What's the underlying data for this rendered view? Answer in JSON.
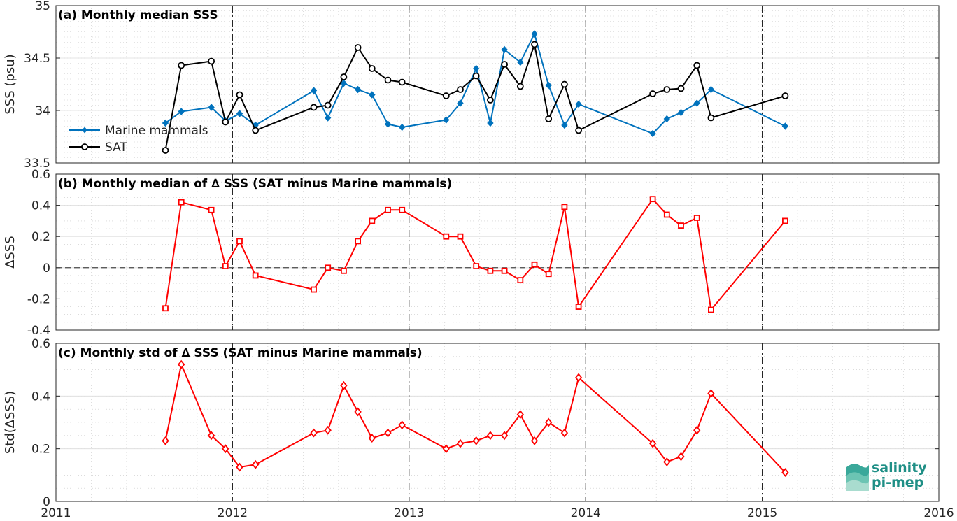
{
  "logo": {
    "line1": "salinity",
    "line2": "pi-mep"
  },
  "chart_data": [
    {
      "type": "line",
      "title": "(a) Monthly median SSS",
      "ylabel": "SSS (psu)",
      "xlabel": "",
      "ylim": [
        33.5,
        35
      ],
      "xlim": [
        2011,
        2016
      ],
      "yticks": [
        "33.5",
        "34",
        "34.5",
        "35"
      ],
      "xticks": [
        "2011",
        "2012",
        "2013",
        "2014",
        "2015",
        "2016"
      ],
      "grid": true,
      "legend": "left",
      "series": [
        {
          "name": "Marine mammals",
          "color": "#0072bd",
          "marker": "diamond-filled",
          "x": [
            2011.62,
            2011.71,
            2011.88,
            2011.96,
            2012.04,
            2012.13,
            2012.46,
            2012.54,
            2012.63,
            2012.71,
            2012.79,
            2012.88,
            2012.96,
            2013.21,
            2013.29,
            2013.38,
            2013.46,
            2013.54,
            2013.63,
            2013.71,
            2013.79,
            2013.88,
            2013.96,
            2014.38,
            2014.46,
            2014.54,
            2014.63,
            2014.71,
            2015.13
          ],
          "y": [
            33.88,
            33.99,
            34.03,
            33.9,
            33.97,
            33.86,
            34.19,
            33.93,
            34.26,
            34.2,
            34.15,
            33.87,
            33.84,
            33.91,
            34.07,
            34.4,
            33.88,
            34.58,
            34.46,
            34.73,
            34.24,
            33.86,
            34.06,
            33.78,
            33.92,
            33.98,
            34.07,
            34.2,
            33.85
          ]
        },
        {
          "name": "SAT",
          "color": "#000000",
          "marker": "circle-open",
          "x": [
            2011.62,
            2011.71,
            2011.88,
            2011.96,
            2012.04,
            2012.13,
            2012.46,
            2012.54,
            2012.63,
            2012.71,
            2012.79,
            2012.88,
            2012.96,
            2013.21,
            2013.29,
            2013.38,
            2013.46,
            2013.54,
            2013.63,
            2013.71,
            2013.79,
            2013.88,
            2013.96,
            2014.38,
            2014.46,
            2014.54,
            2014.63,
            2014.71,
            2015.13
          ],
          "y": [
            33.62,
            34.43,
            34.47,
            33.89,
            34.15,
            33.81,
            34.03,
            34.05,
            34.32,
            34.6,
            34.4,
            34.29,
            34.27,
            34.14,
            34.2,
            34.33,
            34.1,
            34.44,
            34.23,
            34.63,
            33.92,
            34.25,
            33.81,
            34.16,
            34.2,
            34.21,
            34.43,
            33.93,
            34.14
          ]
        }
      ]
    },
    {
      "type": "line",
      "title": "(b) Monthly median of ∆ SSS (SAT minus Marine mammals)",
      "ylabel": "∆SSS",
      "xlabel": "",
      "ylim": [
        -0.4,
        0.6
      ],
      "xlim": [
        2011,
        2016
      ],
      "yticks": [
        "-0.4",
        "-0.2",
        "0",
        "0.2",
        "0.4",
        "0.6"
      ],
      "xticks": [
        "2011",
        "2012",
        "2013",
        "2014",
        "2015",
        "2016"
      ],
      "grid": true,
      "series": [
        {
          "color": "#ff0000",
          "marker": "square-open",
          "x": [
            2011.62,
            2011.71,
            2011.88,
            2011.96,
            2012.04,
            2012.13,
            2012.46,
            2012.54,
            2012.63,
            2012.71,
            2012.79,
            2012.88,
            2012.96,
            2013.21,
            2013.29,
            2013.38,
            2013.46,
            2013.54,
            2013.63,
            2013.71,
            2013.79,
            2013.88,
            2013.96,
            2014.38,
            2014.46,
            2014.54,
            2014.63,
            2014.71,
            2015.13
          ],
          "y": [
            -0.26,
            0.42,
            0.37,
            0.01,
            0.17,
            -0.05,
            -0.14,
            0.0,
            -0.02,
            0.17,
            0.3,
            0.37,
            0.37,
            0.2,
            0.2,
            0.01,
            -0.02,
            -0.02,
            -0.08,
            0.02,
            -0.04,
            0.39,
            -0.25,
            0.44,
            0.34,
            0.27,
            0.32,
            -0.27,
            0.3
          ]
        }
      ]
    },
    {
      "type": "line",
      "title": "(c) Monthly std of ∆ SSS (SAT minus Marine mammals)",
      "ylabel": "Std(∆SSS)",
      "xlabel": "",
      "ylim": [
        0,
        0.6
      ],
      "xlim": [
        2011,
        2016
      ],
      "yticks": [
        "0",
        "0.2",
        "0.4",
        "0.6"
      ],
      "xticks": [
        "2011",
        "2012",
        "2013",
        "2014",
        "2015",
        "2016"
      ],
      "grid": true,
      "series": [
        {
          "color": "#ff0000",
          "marker": "diamond-open",
          "x": [
            2011.62,
            2011.71,
            2011.88,
            2011.96,
            2012.04,
            2012.13,
            2012.46,
            2012.54,
            2012.63,
            2012.71,
            2012.79,
            2012.88,
            2012.96,
            2013.21,
            2013.29,
            2013.38,
            2013.46,
            2013.54,
            2013.63,
            2013.71,
            2013.79,
            2013.88,
            2013.96,
            2014.38,
            2014.46,
            2014.54,
            2014.63,
            2014.71,
            2015.13
          ],
          "y": [
            0.23,
            0.52,
            0.25,
            0.2,
            0.13,
            0.14,
            0.26,
            0.27,
            0.44,
            0.34,
            0.24,
            0.26,
            0.29,
            0.2,
            0.22,
            0.23,
            0.25,
            0.25,
            0.33,
            0.23,
            0.3,
            0.26,
            0.47,
            0.22,
            0.15,
            0.17,
            0.27,
            0.41,
            0.11
          ]
        }
      ]
    }
  ]
}
